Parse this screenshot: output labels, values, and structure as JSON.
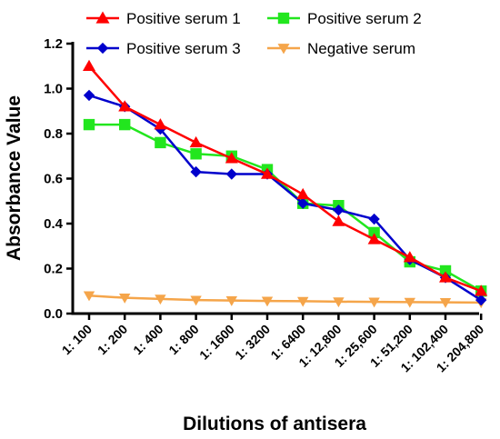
{
  "chart_data": {
    "type": "line",
    "title": "",
    "xlabel": "Dilutions of antisera",
    "ylabel": "Absorbance Value",
    "ylim": [
      0,
      1.2
    ],
    "yticks": [
      "0.0",
      "0.2",
      "0.4",
      "0.6",
      "0.8",
      "1.0",
      "1.2"
    ],
    "grid": false,
    "legend_position": "top",
    "categories": [
      "1: 100",
      "1: 200",
      "1: 400",
      "1: 800",
      "1: 1600",
      "1: 3200",
      "1: 6400",
      "1: 12,800",
      "1: 25,600",
      "1: 51,200",
      "1: 102,400",
      "1: 204,800"
    ],
    "series": [
      {
        "name": "Positive serum 1",
        "color": "#ff0000",
        "marker": "triangle-up",
        "values": [
          1.1,
          0.92,
          0.84,
          0.76,
          0.69,
          0.62,
          0.53,
          0.41,
          0.33,
          0.25,
          0.16,
          0.1
        ]
      },
      {
        "name": "Positive serum 2",
        "color": "#22e61e",
        "marker": "square",
        "values": [
          0.84,
          0.84,
          0.76,
          0.71,
          0.7,
          0.64,
          0.49,
          0.48,
          0.36,
          0.23,
          0.19,
          0.1
        ]
      },
      {
        "name": "Positive serum 3",
        "color": "#0000cc",
        "marker": "diamond",
        "values": [
          0.97,
          0.92,
          0.82,
          0.63,
          0.62,
          0.62,
          0.49,
          0.46,
          0.42,
          0.24,
          0.16,
          0.06
        ]
      },
      {
        "name": "Negative serum",
        "color": "#f5a54a",
        "marker": "triangle-down",
        "values": [
          0.08,
          0.07,
          0.065,
          0.06,
          0.058,
          0.056,
          0.055,
          0.053,
          0.052,
          0.051,
          0.05,
          0.049
        ]
      }
    ]
  }
}
